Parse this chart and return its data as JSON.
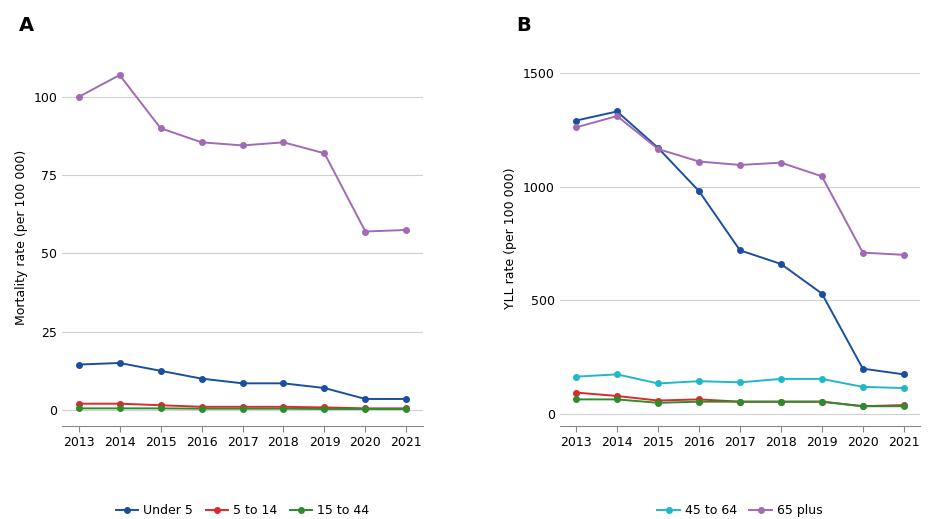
{
  "years": [
    2013,
    2014,
    2015,
    2016,
    2017,
    2018,
    2019,
    2020,
    2021
  ],
  "panel_A": {
    "title": "A",
    "ylabel": "Mortality rate (per 100 000)",
    "under5": [
      14.5,
      15.0,
      12.5,
      10.0,
      8.5,
      8.5,
      7.0,
      3.5,
      3.5
    ],
    "age5_14": [
      2.0,
      2.0,
      1.5,
      1.0,
      1.0,
      1.0,
      0.8,
      0.5,
      0.5
    ],
    "age15_44": [
      0.5,
      0.5,
      0.5,
      0.4,
      0.4,
      0.4,
      0.3,
      0.3,
      0.3
    ],
    "age65plus": [
      100.0,
      107.0,
      90.0,
      85.5,
      84.5,
      85.5,
      82.0,
      57.0,
      57.5
    ],
    "ylim": [
      -5,
      115
    ],
    "yticks": [
      0,
      25,
      50,
      75,
      100
    ]
  },
  "panel_B": {
    "title": "B",
    "ylabel": "YLL rate (per 100 000)",
    "under5": [
      1290,
      1330,
      1170,
      980,
      720,
      660,
      530,
      200,
      175
    ],
    "age45_64": [
      165,
      175,
      135,
      145,
      140,
      155,
      155,
      120,
      115
    ],
    "age5_14": [
      95,
      80,
      60,
      65,
      55,
      55,
      55,
      35,
      40
    ],
    "age15_44": [
      65,
      65,
      50,
      55,
      55,
      55,
      55,
      35,
      35
    ],
    "age65plus": [
      1260,
      1310,
      1165,
      1110,
      1095,
      1105,
      1045,
      710,
      700
    ],
    "ylim": [
      -50,
      1600
    ],
    "yticks": [
      0,
      500,
      1000,
      1500
    ]
  },
  "colors": {
    "under5": "#1a4fa0",
    "age5_14": "#d92b2b",
    "age15_44": "#2e8b2e",
    "age45_64": "#20b8c8",
    "age65plus": "#a06ab4"
  },
  "marker": "o",
  "markersize": 4,
  "linewidth": 1.4,
  "background_color": "#ffffff",
  "grid_color": "#d0d0d0",
  "fig_bg": "#f0f0f0"
}
